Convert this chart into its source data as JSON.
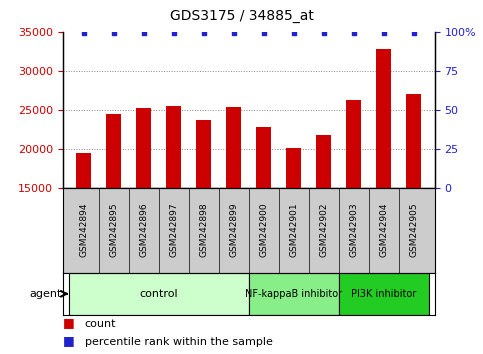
{
  "title": "GDS3175 / 34885_at",
  "samples": [
    "GSM242894",
    "GSM242895",
    "GSM242896",
    "GSM242897",
    "GSM242898",
    "GSM242899",
    "GSM242900",
    "GSM242901",
    "GSM242902",
    "GSM242903",
    "GSM242904",
    "GSM242905"
  ],
  "counts": [
    19500,
    24400,
    25200,
    25500,
    23700,
    25300,
    22800,
    20100,
    21800,
    26300,
    32800,
    27000
  ],
  "percentile_ranks": [
    99,
    99,
    99,
    99,
    99,
    99,
    99,
    99,
    99,
    99,
    99,
    99
  ],
  "bar_color": "#cc0000",
  "dot_color": "#2222cc",
  "ylim_left": [
    15000,
    35000
  ],
  "ylim_right": [
    0,
    100
  ],
  "yticks_left": [
    15000,
    20000,
    25000,
    30000,
    35000
  ],
  "yticks_right": [
    0,
    25,
    50,
    75,
    100
  ],
  "groups": [
    {
      "label": "control",
      "start": 0,
      "end": 6,
      "color": "#ccffcc"
    },
    {
      "label": "NF-kappaB inhibitor",
      "start": 6,
      "end": 9,
      "color": "#88ee88"
    },
    {
      "label": "PI3K inhibitor",
      "start": 9,
      "end": 12,
      "color": "#22cc22"
    }
  ],
  "legend_count_color": "#cc0000",
  "legend_dot_color": "#2222cc",
  "plot_bg_color": "#ffffff",
  "sample_area_color": "#cccccc",
  "grid_color": "#888888",
  "bar_width": 0.5
}
